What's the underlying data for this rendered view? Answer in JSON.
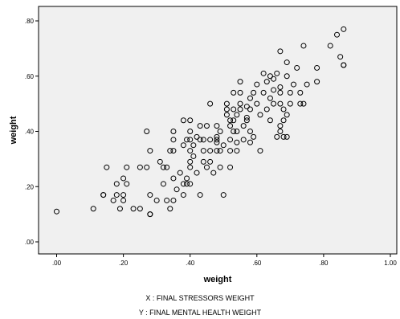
{
  "chart_data": {
    "type": "scatter",
    "xlabel": "weight",
    "ylabel": "weight",
    "xlim": [
      0,
      1.0
    ],
    "ylim": [
      0,
      0.8
    ],
    "x_ticks": [
      ".00",
      ".20",
      ".40",
      ".60",
      ".80",
      "1.00"
    ],
    "y_ticks": [
      ".00",
      ".20",
      ".40",
      ".60",
      ".80"
    ],
    "grid": false,
    "colors": {
      "background": "#f0f0f0",
      "marker": "#000000"
    },
    "points": [
      [
        0.0,
        0.11
      ],
      [
        0.11,
        0.12
      ],
      [
        0.14,
        0.17
      ],
      [
        0.14,
        0.17
      ],
      [
        0.15,
        0.27
      ],
      [
        0.17,
        0.15
      ],
      [
        0.18,
        0.17
      ],
      [
        0.18,
        0.21
      ],
      [
        0.19,
        0.12
      ],
      [
        0.2,
        0.15
      ],
      [
        0.2,
        0.17
      ],
      [
        0.2,
        0.23
      ],
      [
        0.21,
        0.21
      ],
      [
        0.21,
        0.27
      ],
      [
        0.23,
        0.12
      ],
      [
        0.25,
        0.12
      ],
      [
        0.25,
        0.27
      ],
      [
        0.27,
        0.27
      ],
      [
        0.27,
        0.4
      ],
      [
        0.28,
        0.1
      ],
      [
        0.28,
        0.1
      ],
      [
        0.28,
        0.17
      ],
      [
        0.28,
        0.33
      ],
      [
        0.3,
        0.15
      ],
      [
        0.31,
        0.29
      ],
      [
        0.32,
        0.21
      ],
      [
        0.32,
        0.27
      ],
      [
        0.33,
        0.15
      ],
      [
        0.33,
        0.27
      ],
      [
        0.34,
        0.33
      ],
      [
        0.34,
        0.12
      ],
      [
        0.35,
        0.23
      ],
      [
        0.35,
        0.15
      ],
      [
        0.35,
        0.33
      ],
      [
        0.35,
        0.37
      ],
      [
        0.35,
        0.4
      ],
      [
        0.36,
        0.19
      ],
      [
        0.37,
        0.25
      ],
      [
        0.38,
        0.35
      ],
      [
        0.38,
        0.44
      ],
      [
        0.38,
        0.17
      ],
      [
        0.38,
        0.21
      ],
      [
        0.39,
        0.23
      ],
      [
        0.39,
        0.37
      ],
      [
        0.39,
        0.21
      ],
      [
        0.4,
        0.21
      ],
      [
        0.4,
        0.27
      ],
      [
        0.4,
        0.29
      ],
      [
        0.4,
        0.33
      ],
      [
        0.4,
        0.37
      ],
      [
        0.4,
        0.4
      ],
      [
        0.4,
        0.44
      ],
      [
        0.41,
        0.31
      ],
      [
        0.41,
        0.35
      ],
      [
        0.42,
        0.25
      ],
      [
        0.42,
        0.38
      ],
      [
        0.43,
        0.17
      ],
      [
        0.43,
        0.42
      ],
      [
        0.43,
        0.37
      ],
      [
        0.44,
        0.29
      ],
      [
        0.44,
        0.33
      ],
      [
        0.44,
        0.37
      ],
      [
        0.45,
        0.42
      ],
      [
        0.45,
        0.27
      ],
      [
        0.46,
        0.33
      ],
      [
        0.46,
        0.29
      ],
      [
        0.46,
        0.37
      ],
      [
        0.46,
        0.5
      ],
      [
        0.47,
        0.25
      ],
      [
        0.48,
        0.33
      ],
      [
        0.48,
        0.36
      ],
      [
        0.48,
        0.37
      ],
      [
        0.48,
        0.38
      ],
      [
        0.48,
        0.42
      ],
      [
        0.49,
        0.33
      ],
      [
        0.49,
        0.4
      ],
      [
        0.49,
        0.27
      ],
      [
        0.5,
        0.17
      ],
      [
        0.5,
        0.35
      ],
      [
        0.51,
        0.46
      ],
      [
        0.51,
        0.5
      ],
      [
        0.51,
        0.48
      ],
      [
        0.52,
        0.27
      ],
      [
        0.52,
        0.33
      ],
      [
        0.52,
        0.44
      ],
      [
        0.52,
        0.37
      ],
      [
        0.52,
        0.42
      ],
      [
        0.53,
        0.4
      ],
      [
        0.53,
        0.44
      ],
      [
        0.53,
        0.48
      ],
      [
        0.53,
        0.54
      ],
      [
        0.54,
        0.36
      ],
      [
        0.54,
        0.33
      ],
      [
        0.54,
        0.4
      ],
      [
        0.54,
        0.46
      ],
      [
        0.55,
        0.48
      ],
      [
        0.55,
        0.5
      ],
      [
        0.55,
        0.54
      ],
      [
        0.55,
        0.58
      ],
      [
        0.56,
        0.37
      ],
      [
        0.56,
        0.42
      ],
      [
        0.57,
        0.45
      ],
      [
        0.57,
        0.49
      ],
      [
        0.57,
        0.44
      ],
      [
        0.58,
        0.36
      ],
      [
        0.58,
        0.4
      ],
      [
        0.58,
        0.48
      ],
      [
        0.58,
        0.52
      ],
      [
        0.59,
        0.38
      ],
      [
        0.59,
        0.54
      ],
      [
        0.6,
        0.57
      ],
      [
        0.6,
        0.5
      ],
      [
        0.61,
        0.33
      ],
      [
        0.61,
        0.46
      ],
      [
        0.62,
        0.54
      ],
      [
        0.62,
        0.61
      ],
      [
        0.63,
        0.58
      ],
      [
        0.63,
        0.48
      ],
      [
        0.64,
        0.52
      ],
      [
        0.64,
        0.6
      ],
      [
        0.64,
        0.44
      ],
      [
        0.65,
        0.5
      ],
      [
        0.65,
        0.55
      ],
      [
        0.65,
        0.59
      ],
      [
        0.66,
        0.61
      ],
      [
        0.66,
        0.38
      ],
      [
        0.67,
        0.4
      ],
      [
        0.67,
        0.42
      ],
      [
        0.67,
        0.5
      ],
      [
        0.67,
        0.54
      ],
      [
        0.67,
        0.56
      ],
      [
        0.67,
        0.69
      ],
      [
        0.68,
        0.44
      ],
      [
        0.68,
        0.48
      ],
      [
        0.68,
        0.38
      ],
      [
        0.69,
        0.46
      ],
      [
        0.69,
        0.6
      ],
      [
        0.69,
        0.38
      ],
      [
        0.69,
        0.65
      ],
      [
        0.7,
        0.5
      ],
      [
        0.7,
        0.54
      ],
      [
        0.71,
        0.57
      ],
      [
        0.72,
        0.63
      ],
      [
        0.73,
        0.5
      ],
      [
        0.73,
        0.54
      ],
      [
        0.74,
        0.71
      ],
      [
        0.74,
        0.5
      ],
      [
        0.75,
        0.57
      ],
      [
        0.78,
        0.58
      ],
      [
        0.78,
        0.63
      ],
      [
        0.82,
        0.71
      ],
      [
        0.84,
        0.75
      ],
      [
        0.85,
        0.67
      ],
      [
        0.86,
        0.64
      ],
      [
        0.86,
        0.77
      ],
      [
        0.86,
        0.64
      ]
    ]
  },
  "captions": {
    "x_caption": "X : FINAL STRESSORS WEIGHT",
    "y_caption": "Y : FINAL MENTAL HEALTH WEIGHT"
  }
}
